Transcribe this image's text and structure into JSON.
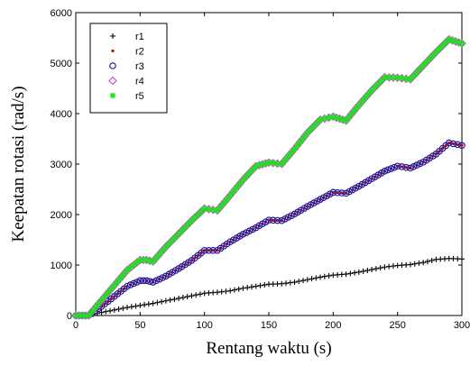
{
  "chart_data": {
    "type": "line",
    "title": "",
    "xlabel": "Rentang waktu (s)",
    "ylabel": "Keepatan rotasi (rad/s)",
    "xlim": [
      0,
      300
    ],
    "ylim": [
      0,
      6000
    ],
    "x_ticks": [
      0,
      50,
      100,
      150,
      200,
      250,
      300
    ],
    "y_ticks": [
      0,
      1000,
      2000,
      3000,
      4000,
      5000,
      6000
    ],
    "grid": false,
    "legend_position": "top-left",
    "series": [
      {
        "name": "r1",
        "marker": "plus",
        "color": "#000000",
        "x": [
          0,
          5,
          10,
          20,
          30,
          40,
          50,
          60,
          70,
          80,
          90,
          100,
          110,
          120,
          130,
          140,
          150,
          160,
          170,
          180,
          190,
          200,
          210,
          220,
          230,
          240,
          250,
          260,
          270,
          280,
          290,
          300
        ],
        "y": [
          0,
          0,
          0,
          60,
          110,
          160,
          200,
          240,
          290,
          340,
          390,
          440,
          460,
          490,
          540,
          580,
          620,
          630,
          660,
          710,
          760,
          800,
          820,
          860,
          910,
          960,
          990,
          1010,
          1050,
          1110,
          1130,
          1120
        ]
      },
      {
        "name": "r2",
        "marker": "dot",
        "color": "#cc0000",
        "x": [
          0,
          5,
          10,
          20,
          30,
          40,
          50,
          55,
          60,
          70,
          80,
          90,
          100,
          110,
          120,
          130,
          140,
          150,
          160,
          170,
          180,
          190,
          200,
          210,
          220,
          230,
          240,
          250,
          260,
          270,
          280,
          290,
          300
        ],
        "y": [
          0,
          0,
          0,
          180,
          380,
          580,
          690,
          690,
          660,
          780,
          930,
          1090,
          1290,
          1290,
          1460,
          1610,
          1740,
          1890,
          1880,
          2010,
          2160,
          2300,
          2440,
          2420,
          2560,
          2710,
          2860,
          2960,
          2920,
          3040,
          3200,
          3420,
          3370
        ]
      },
      {
        "name": "r3",
        "marker": "circle",
        "color": "#1a1aa0",
        "x": [
          0,
          5,
          10,
          20,
          30,
          40,
          50,
          55,
          60,
          70,
          80,
          90,
          100,
          110,
          120,
          130,
          140,
          150,
          160,
          170,
          180,
          190,
          200,
          210,
          220,
          230,
          240,
          250,
          260,
          270,
          280,
          290,
          300
        ],
        "y": [
          0,
          0,
          0,
          180,
          380,
          580,
          690,
          690,
          660,
          780,
          930,
          1090,
          1290,
          1290,
          1460,
          1610,
          1740,
          1890,
          1880,
          2010,
          2160,
          2300,
          2440,
          2420,
          2560,
          2710,
          2860,
          2960,
          2920,
          3040,
          3200,
          3420,
          3370
        ]
      },
      {
        "name": "r4",
        "marker": "diamond",
        "color": "#cc44cc",
        "x": [
          0,
          5,
          10,
          20,
          30,
          40,
          50,
          55,
          60,
          70,
          80,
          90,
          100,
          110,
          120,
          130,
          140,
          150,
          160,
          170,
          180,
          190,
          200,
          210,
          220,
          230,
          240,
          250,
          260,
          270,
          280,
          290,
          300
        ],
        "y": [
          0,
          0,
          0,
          300,
          600,
          900,
          1100,
          1100,
          1070,
          1360,
          1620,
          1880,
          2120,
          2080,
          2380,
          2690,
          2960,
          3030,
          3000,
          3300,
          3620,
          3880,
          3940,
          3860,
          4170,
          4460,
          4720,
          4710,
          4680,
          4950,
          5220,
          5470,
          5390
        ]
      },
      {
        "name": "r5",
        "marker": "star",
        "color": "#22dd22",
        "x": [
          0,
          5,
          10,
          20,
          30,
          40,
          50,
          55,
          60,
          70,
          80,
          90,
          100,
          110,
          120,
          130,
          140,
          150,
          160,
          170,
          180,
          190,
          200,
          210,
          220,
          230,
          240,
          250,
          260,
          270,
          280,
          290,
          300
        ],
        "y": [
          0,
          0,
          0,
          300,
          600,
          900,
          1100,
          1100,
          1070,
          1360,
          1620,
          1880,
          2120,
          2080,
          2380,
          2690,
          2960,
          3030,
          3000,
          3300,
          3620,
          3880,
          3940,
          3860,
          4170,
          4460,
          4720,
          4710,
          4680,
          4950,
          5220,
          5470,
          5390
        ]
      }
    ]
  }
}
